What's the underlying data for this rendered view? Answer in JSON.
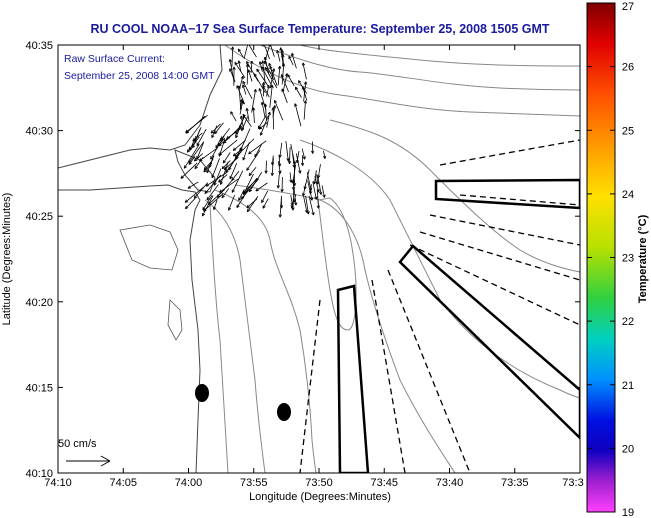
{
  "title": "RU COOL  NOAA−17  Sea Surface Temperature:  September 25, 2008 1505 GMT",
  "current_label_line1": "Raw Surface Current:",
  "current_label_line2": "September 25, 2008 14:00 GMT",
  "scale_label": "50 cm/s",
  "xlabel": "Longitude (Degrees:Minutes)",
  "ylabel": "Latitude (Degrees:Minutes)",
  "x_ticks": [
    "74:10",
    "74:05",
    "74:00",
    "73:55",
    "73:50",
    "73:45",
    "73:40",
    "73:35",
    "73:3"
  ],
  "y_ticks": [
    "40:35",
    "40:30",
    "40:25",
    "40:20",
    "40:15",
    "40:10"
  ],
  "colorbar": {
    "label": "Temperature (°C)",
    "ticks": [
      "27",
      "26",
      "25",
      "24",
      "23",
      "22",
      "21",
      "20",
      "19"
    ],
    "colors": [
      "#8b0000",
      "#ff0000",
      "#ff7f00",
      "#ffd400",
      "#b8e000",
      "#3cd13c",
      "#00c8c8",
      "#1e6cff",
      "#0000e0",
      "#b030c0",
      "#ff40ff"
    ]
  }
}
